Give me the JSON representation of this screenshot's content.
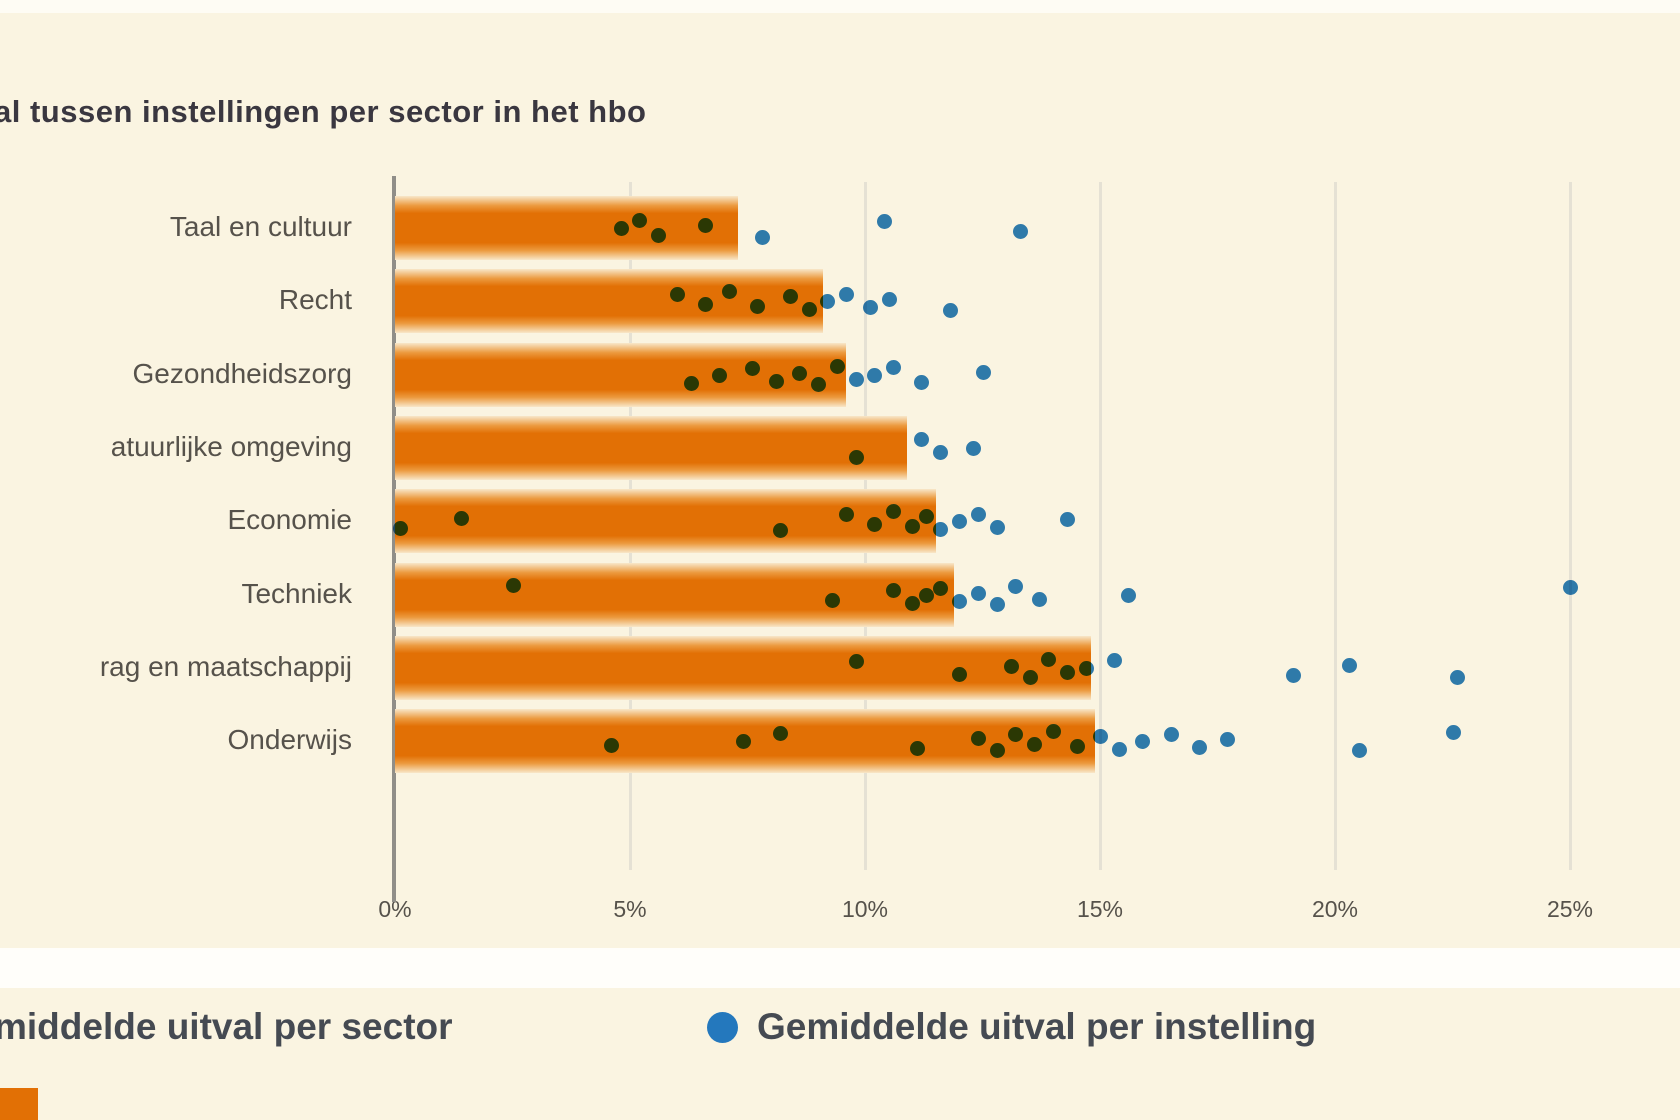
{
  "title": "al tussen instellingen per sector in het hbo",
  "legend": {
    "sector_label": "middelde uitval per sector",
    "instelling_label": "Gemiddelde uitval per instelling"
  },
  "colors": {
    "background": "#faf4e1",
    "bar_orange": "#e27005",
    "dot_blue": "#2478bd",
    "axis": "#908e88",
    "gridline": "#e5e1d4",
    "text": "#56524b",
    "title_text": "#3a3740"
  },
  "chart_data": {
    "type": "bar",
    "orientation": "horizontal",
    "title": "al tussen instellingen per sector in het hbo",
    "xlabel": "",
    "ylabel": "",
    "xlim": [
      0,
      26.5
    ],
    "grid": true,
    "legend_position": "bottom",
    "x_ticks": [
      {
        "label": "0%",
        "value": 0
      },
      {
        "label": "5%",
        "value": 5
      },
      {
        "label": "10%",
        "value": 10
      },
      {
        "label": "15%",
        "value": 15
      },
      {
        "label": "20%",
        "value": 20
      },
      {
        "label": "25%",
        "value": 25
      }
    ],
    "categories": [
      "Taal en cultuur",
      "Recht",
      "Gezondheidszorg",
      "atuurlijke omgeving",
      "Economie",
      "Techniek",
      "rag en maatschappij",
      "Onderwijs"
    ],
    "series": [
      {
        "name": "Gemiddelde uitval per sector",
        "type": "bar",
        "unit": "%",
        "values": [
          7.3,
          9.1,
          9.6,
          10.9,
          11.5,
          11.9,
          14.8,
          14.9
        ]
      },
      {
        "name": "Gemiddelde uitval per instelling",
        "type": "scatter",
        "unit": "%",
        "values_by_category": [
          [
            4.8,
            5.2,
            5.6,
            6.6,
            7.8,
            10.4,
            13.3
          ],
          [
            6.0,
            6.6,
            7.1,
            7.7,
            8.4,
            8.8,
            9.2,
            9.6,
            10.1,
            10.5,
            11.8
          ],
          [
            6.3,
            6.9,
            7.6,
            8.1,
            8.6,
            9.0,
            9.4,
            9.8,
            10.2,
            10.6,
            11.2,
            12.5
          ],
          [
            9.8,
            11.2,
            11.6,
            12.3
          ],
          [
            0.1,
            1.4,
            8.2,
            9.6,
            10.2,
            10.6,
            11.0,
            11.3,
            11.6,
            12.0,
            12.4,
            12.8,
            14.3
          ],
          [
            2.5,
            9.3,
            10.6,
            11.0,
            11.3,
            11.6,
            12.0,
            12.4,
            12.8,
            13.2,
            13.7,
            15.6,
            25.0
          ],
          [
            9.8,
            12.0,
            13.1,
            13.5,
            13.9,
            14.3,
            14.7,
            15.3,
            19.1,
            20.3,
            22.6
          ],
          [
            4.6,
            7.4,
            8.2,
            11.1,
            12.4,
            12.8,
            13.2,
            13.6,
            14.0,
            14.5,
            15.0,
            15.4,
            15.9,
            16.5,
            17.1,
            17.7,
            20.5,
            22.5
          ]
        ]
      }
    ]
  }
}
